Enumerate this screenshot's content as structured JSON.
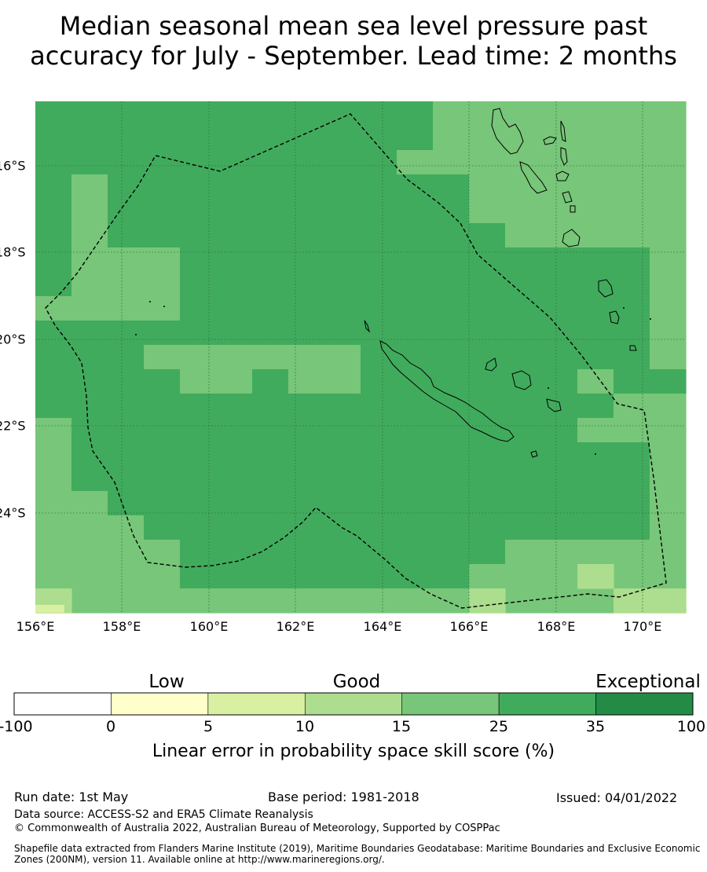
{
  "title": {
    "line1": "Median seasonal mean sea level pressure past",
    "line2": "accuracy for July - September. Lead time: 2 months"
  },
  "map": {
    "lat_labels": [
      "16°S",
      "18°S",
      "20°S",
      "22°S",
      "24°S"
    ],
    "lon_labels": [
      "156°E",
      "158°E",
      "160°E",
      "162°E",
      "164°E",
      "166°E",
      "168°E",
      "170°E"
    ],
    "colors": {
      "exceptional": "#238b45",
      "c25_35": "#41ab5d",
      "c15_25": "#78c679",
      "c10_15": "#addd8e",
      "c5_10": "#d9f0a3",
      "c0_5": "#ffffcc",
      "below0": "#ffffff"
    }
  },
  "colorbar": {
    "category_labels": [
      "Low",
      "Good",
      "Exceptional"
    ],
    "ticks": [
      "-100",
      "0",
      "5",
      "10",
      "15",
      "25",
      "35",
      "100"
    ],
    "caption": "Linear error in probability space skill score (%)",
    "bins": [
      {
        "from": -100,
        "to": 0,
        "color": "#ffffff"
      },
      {
        "from": 0,
        "to": 5,
        "color": "#ffffcc"
      },
      {
        "from": 5,
        "to": 10,
        "color": "#d9f0a3"
      },
      {
        "from": 10,
        "to": 15,
        "color": "#addd8e"
      },
      {
        "from": 15,
        "to": 25,
        "color": "#78c679"
      },
      {
        "from": 25,
        "to": 35,
        "color": "#41ab5d"
      },
      {
        "from": 35,
        "to": 100,
        "color": "#238b45"
      }
    ]
  },
  "footer": {
    "run_date": "Run date: 1st May",
    "base_period": "Base period: 1981-2018",
    "issued": "Issued: 04/01/2022",
    "data_source": "Data source: ACCESS-S2 and ERA5 Climate Reanalysis",
    "copyright": "© Commonwealth of Australia 2022, Australian Bureau of Meteorology, Supported by COSPPac",
    "shapefile": "Shapefile data extracted from Flanders Marine Institute (2019), Maritime Boundaries Geodatabase: Maritime Boundaries and Exclusive Economic Zones (200NM), version 11. Available online at http://www.marineregions.org/."
  }
}
